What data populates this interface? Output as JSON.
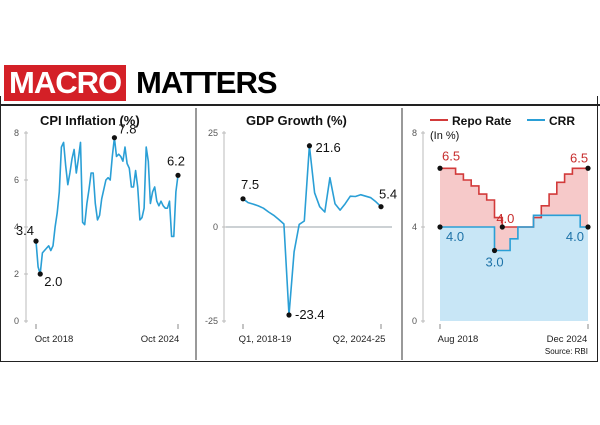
{
  "header": {
    "word1": "MACRO",
    "word2": "MATTERS"
  },
  "source": "Source: RBI",
  "colors": {
    "blue": "#2a9fd6",
    "red": "#d23a3a",
    "red_fill": "#f6c9c9",
    "blue_fill": "#c8e6f6",
    "title_red": "#d42027"
  },
  "chart_data": [
    {
      "type": "line",
      "title": "CPI Inflation (%)",
      "ylim": [
        0,
        8
      ],
      "yticks": [
        "0",
        "2",
        "4",
        "6",
        "8"
      ],
      "x_labels": [
        "Oct 2018",
        "Oct 2024"
      ],
      "values": [
        3.4,
        2.3,
        2.0,
        2.9,
        3.0,
        3.1,
        3.2,
        3.0,
        3.2,
        4.0,
        4.6,
        5.5,
        7.4,
        7.6,
        6.6,
        5.8,
        6.3,
        6.9,
        7.3,
        6.3,
        6.9,
        7.6,
        4.2,
        4.1,
        5.0,
        5.6,
        6.3,
        6.3,
        5.0,
        4.3,
        4.5,
        5.2,
        5.6,
        6.0,
        6.1,
        6.0,
        7.0,
        7.8,
        7.0,
        7.1,
        7.0,
        6.8,
        7.4,
        6.7,
        6.5,
        5.7,
        5.7,
        6.4,
        5.7,
        4.3,
        4.4,
        4.8,
        7.4,
        6.8,
        5.0,
        5.5,
        5.7,
        5.1,
        4.9,
        5.1,
        4.9,
        4.8,
        4.8,
        5.1,
        3.6,
        3.6,
        5.5,
        6.2
      ],
      "annotations": [
        {
          "index": 0,
          "text": "3.4"
        },
        {
          "index": 2,
          "text": "2.0"
        },
        {
          "index": 37,
          "text": "7.8"
        },
        {
          "index": 67,
          "text": "6.2"
        }
      ]
    },
    {
      "type": "line",
      "title": "GDP Growth (%)",
      "ylim": [
        -25,
        25
      ],
      "yticks": [
        "25",
        "0",
        "-25"
      ],
      "x_labels": [
        "Q1, 2018-19",
        "Q2, 2024-25"
      ],
      "values": [
        7.5,
        6.5,
        6.1,
        5.6,
        5.0,
        4.0,
        3.1,
        2.0,
        0.8,
        -23.4,
        -6.6,
        0.7,
        1.6,
        21.6,
        9.1,
        5.4,
        4.0,
        13.1,
        6.2,
        4.5,
        6.2,
        8.2,
        8.1,
        8.6,
        8.2,
        7.8,
        6.7,
        5.4
      ],
      "annotations": [
        {
          "index": 0,
          "text": "7.5"
        },
        {
          "index": 9,
          "text": "-23.4"
        },
        {
          "index": 13,
          "text": "21.6"
        },
        {
          "index": 27,
          "text": "5.4"
        }
      ]
    },
    {
      "type": "area",
      "unit_label": "(In %)",
      "ylim": [
        0,
        8
      ],
      "yticks": [
        "0",
        "4",
        "8"
      ],
      "x_labels": [
        "Aug 2018",
        "Dec 2024"
      ],
      "legend_position": "top",
      "series": [
        {
          "name": "Repo Rate",
          "values": [
            6.5,
            6.5,
            6.25,
            6.0,
            5.75,
            5.4,
            5.15,
            4.4,
            4.0,
            4.0,
            4.0,
            4.0,
            4.4,
            4.9,
            5.4,
            5.9,
            6.25,
            6.5,
            6.5,
            6.5
          ]
        },
        {
          "name": "CRR",
          "values": [
            4.0,
            4.0,
            4.0,
            4.0,
            4.0,
            4.0,
            4.0,
            3.0,
            3.0,
            3.5,
            4.0,
            4.0,
            4.5,
            4.5,
            4.5,
            4.5,
            4.5,
            4.5,
            4.0,
            4.0
          ]
        }
      ],
      "annotations": [
        {
          "series": 0,
          "index": 0,
          "text": "6.5"
        },
        {
          "series": 1,
          "index": 0,
          "text": "4.0"
        },
        {
          "series": 1,
          "index": 7,
          "text": "3.0"
        },
        {
          "series": 0,
          "index": 8,
          "text": "4.0"
        },
        {
          "series": 0,
          "index": 19,
          "text": "6.5"
        },
        {
          "series": 1,
          "index": 19,
          "text": "4.0"
        }
      ]
    }
  ]
}
